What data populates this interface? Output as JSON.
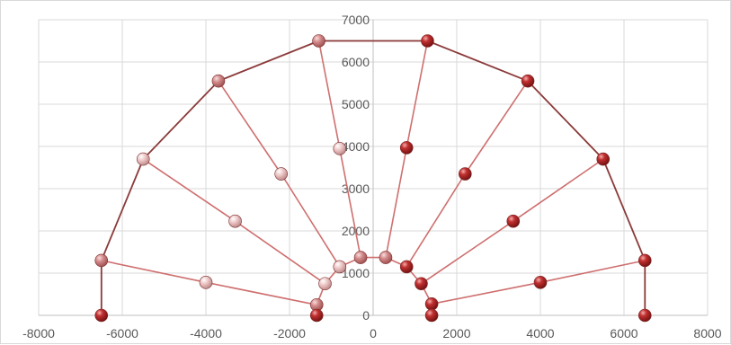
{
  "chart_data": {
    "type": "scatter",
    "title": "",
    "xlabel": "",
    "ylabel": "",
    "xlim": [
      -8000,
      8000
    ],
    "ylim": [
      0,
      7000
    ],
    "x_ticks": [
      -8000,
      -6000,
      -4000,
      -2000,
      0,
      2000,
      4000,
      6000,
      8000
    ],
    "y_ticks": [
      0,
      1000,
      2000,
      3000,
      4000,
      5000,
      6000,
      7000
    ],
    "x_tick_labels": [
      "-8000",
      "-6000",
      "-4000",
      "-2000",
      "0",
      "2000",
      "4000",
      "6000",
      "8000"
    ],
    "y_tick_labels": [
      "0",
      "1000",
      "2000",
      "3000",
      "4000",
      "5000",
      "6000",
      "7000"
    ],
    "grid": true,
    "legend": "none",
    "outer_arc": {
      "points": [
        [
          -6500,
          0
        ],
        [
          -6500,
          1300
        ],
        [
          -5500,
          3700
        ],
        [
          -3700,
          5550
        ],
        [
          -1300,
          6500
        ],
        [
          1300,
          6500
        ],
        [
          3700,
          5550
        ],
        [
          5500,
          3700
        ],
        [
          6500,
          1300
        ],
        [
          6500,
          0
        ]
      ]
    },
    "spokes": [
      {
        "points": [
          [
            -6500,
            1300
          ],
          [
            -4000,
            780
          ],
          [
            -1350,
            250
          ]
        ]
      },
      {
        "points": [
          [
            -5500,
            3700
          ],
          [
            -3300,
            2230
          ],
          [
            -1150,
            750
          ]
        ]
      },
      {
        "points": [
          [
            -3700,
            5550
          ],
          [
            -2200,
            3350
          ],
          [
            -800,
            1150
          ]
        ]
      },
      {
        "points": [
          [
            -1300,
            6500
          ],
          [
            -800,
            3950
          ],
          [
            -300,
            1370
          ]
        ]
      },
      {
        "points": [
          [
            1300,
            6500
          ],
          [
            800,
            3970
          ],
          [
            300,
            1370
          ]
        ]
      },
      {
        "points": [
          [
            3700,
            5550
          ],
          [
            2200,
            3350
          ],
          [
            800,
            1150
          ]
        ]
      },
      {
        "points": [
          [
            5500,
            3700
          ],
          [
            3350,
            2230
          ],
          [
            1150,
            750
          ]
        ]
      },
      {
        "points": [
          [
            6500,
            1300
          ],
          [
            4000,
            780
          ],
          [
            1400,
            270
          ]
        ]
      }
    ],
    "inner_arc": {
      "points": [
        [
          -1350,
          250
        ],
        [
          -1150,
          750
        ],
        [
          -800,
          1150
        ],
        [
          -300,
          1370
        ],
        [
          300,
          1370
        ],
        [
          800,
          1150
        ],
        [
          1150,
          750
        ],
        [
          1400,
          270
        ]
      ]
    },
    "base_points": [
      [
        -1350,
        0
      ],
      [
        1400,
        0
      ]
    ],
    "colors": {
      "outer_line": "#8b3a3a",
      "spoke_line": "#cf6f6f",
      "marker_dark": "#a81e1e",
      "marker_light": "#e8b8b8",
      "grid": "#d9d9d9",
      "axis": "#bfbfbf"
    }
  }
}
